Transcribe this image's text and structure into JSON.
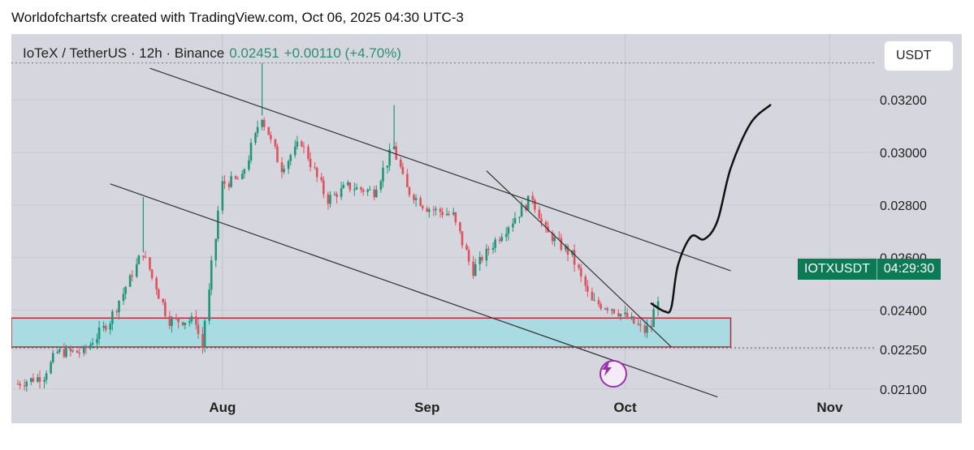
{
  "header": {
    "credit": "Worldofchartsfx created with TradingView.com, Oct 06, 2025 04:30 UTC-3"
  },
  "legend": {
    "symbol": "IoTeX / TetherUS · 12h · Binance",
    "price": "0.02451",
    "change": "+0.00110 (+4.70%)"
  },
  "currency_button": "USDT",
  "price_tag": {
    "ticker": "IOTXUSDT",
    "countdown": "04:29:30"
  },
  "icons": {
    "flash": "lightning-icon"
  },
  "colors": {
    "up": "#20957a",
    "down": "#e0505d",
    "zone_fill": "#a9dbe3",
    "zone_border": "#b52d3d",
    "background": "#d6d7de",
    "tag": "#0d7a55"
  },
  "chart_data": {
    "type": "candlestick",
    "title": "IoTeX / TetherUS · 12h · Binance",
    "x_ticks": [
      "Aug",
      "Sep",
      "Oct",
      "Nov"
    ],
    "y_ticks": [
      0.021,
      0.0225,
      0.024,
      0.026,
      0.028,
      0.03,
      0.032
    ],
    "y_tick_labels": [
      "0.02100",
      "0.02250",
      "0.02400",
      "0.02600",
      "0.02800",
      "0.03000",
      "0.03200"
    ],
    "ylim": [
      0.0197,
      0.0345
    ],
    "x_range": [
      "2025-07-01",
      "2025-11-06"
    ],
    "last_price": 0.02451,
    "high_marker": 0.0334,
    "candle_knots": [
      [
        "2025-07-01",
        0.0212
      ],
      [
        "2025-07-05",
        0.0215
      ],
      [
        "2025-07-07",
        0.0224
      ],
      [
        "2025-07-11",
        0.0224
      ],
      [
        "2025-07-15",
        0.0236
      ],
      [
        "2025-07-20",
        0.0262
      ],
      [
        "2025-07-24",
        0.0236
      ],
      [
        "2025-07-28",
        0.0236
      ],
      [
        "2025-07-29",
        0.0226
      ],
      [
        "2025-08-01",
        0.0288
      ],
      [
        "2025-08-04",
        0.029
      ],
      [
        "2025-08-07",
        0.0314
      ],
      [
        "2025-08-10",
        0.0294
      ],
      [
        "2025-08-13",
        0.0304
      ],
      [
        "2025-08-17",
        0.0282
      ],
      [
        "2025-08-20",
        0.0287
      ],
      [
        "2025-08-24",
        0.0285
      ],
      [
        "2025-08-27",
        0.0302
      ],
      [
        "2025-08-29",
        0.0286
      ],
      [
        "2025-09-01",
        0.0279
      ],
      [
        "2025-09-05",
        0.0276
      ],
      [
        "2025-09-08",
        0.0255
      ],
      [
        "2025-09-11",
        0.0265
      ],
      [
        "2025-09-17",
        0.0283
      ],
      [
        "2025-09-19",
        0.027
      ],
      [
        "2025-09-23",
        0.0261
      ],
      [
        "2025-09-26",
        0.0243
      ],
      [
        "2025-09-29",
        0.0241
      ],
      [
        "2025-10-02",
        0.0236
      ],
      [
        "2025-10-04",
        0.0232
      ],
      [
        "2025-10-05",
        0.0234
      ],
      [
        "2025-10-06",
        0.0245
      ]
    ],
    "zone": {
      "from": "2025-07-01",
      "to": "2025-10-17",
      "y_low": 0.0226,
      "y_high": 0.0237
    },
    "reference_lines": [
      {
        "name": "channel-upper",
        "points": [
          [
            "2025-07-21",
            0.0332
          ],
          [
            "2025-10-17",
            0.0255
          ]
        ]
      },
      {
        "name": "channel-lower",
        "points": [
          [
            "2025-07-15",
            0.0288
          ],
          [
            "2025-10-15",
            0.0207
          ]
        ]
      },
      {
        "name": "short-trendline",
        "points": [
          [
            "2025-09-10",
            0.0293
          ],
          [
            "2025-10-08",
            0.0226
          ]
        ]
      }
    ],
    "projection": [
      [
        "2025-10-05",
        0.02425
      ],
      [
        "2025-10-07",
        0.02395
      ],
      [
        "2025-10-08",
        0.0241
      ],
      [
        "2025-10-09",
        0.0257
      ],
      [
        "2025-10-11",
        0.0268
      ],
      [
        "2025-10-13",
        0.0267
      ],
      [
        "2025-10-15",
        0.0274
      ],
      [
        "2025-10-17",
        0.0294
      ],
      [
        "2025-10-20",
        0.0311
      ],
      [
        "2025-10-23",
        0.0318
      ]
    ]
  }
}
